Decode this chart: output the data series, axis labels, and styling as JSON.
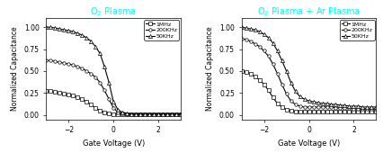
{
  "title1": "O$_2$ Plasma",
  "title2": "O$_2$ Plasma + Ar Plasma",
  "title1_color": "cyan",
  "title2_color": "cyan",
  "xlabel": "Gate Voltage (V)",
  "ylabel": "Normalized Capacitance",
  "xlim": [
    -3,
    3
  ],
  "ylim": [
    -0.05,
    1.1
  ],
  "yticks": [
    0.0,
    0.25,
    0.5,
    0.75,
    1.0
  ],
  "xticks": [
    -2,
    0,
    2
  ],
  "plot1": {
    "x_1mhz": [
      -3.0,
      -2.8,
      -2.6,
      -2.4,
      -2.2,
      -2.0,
      -1.8,
      -1.6,
      -1.4,
      -1.2,
      -1.0,
      -0.8,
      -0.6,
      -0.4,
      -0.2,
      0.0,
      0.2,
      0.4,
      0.6,
      0.8,
      1.0,
      1.2,
      1.4,
      1.6,
      1.8,
      2.0,
      2.2,
      2.4,
      2.6,
      2.8,
      3.0
    ],
    "y_1mhz": [
      0.27,
      0.27,
      0.26,
      0.25,
      0.24,
      0.23,
      0.22,
      0.2,
      0.18,
      0.15,
      0.12,
      0.08,
      0.05,
      0.03,
      0.02,
      0.01,
      0.01,
      0.01,
      0.01,
      0.01,
      0.01,
      0.01,
      0.01,
      0.01,
      0.01,
      0.01,
      0.01,
      0.01,
      0.01,
      0.01,
      0.01
    ],
    "x_200k": [
      -3.0,
      -2.8,
      -2.6,
      -2.4,
      -2.2,
      -2.0,
      -1.8,
      -1.6,
      -1.4,
      -1.2,
      -1.0,
      -0.8,
      -0.6,
      -0.4,
      -0.2,
      0.0,
      0.2,
      0.4,
      0.6,
      0.8,
      1.0,
      1.2,
      1.4,
      1.6,
      1.8,
      2.0,
      2.2,
      2.4,
      2.6,
      2.8,
      3.0
    ],
    "y_200k": [
      0.62,
      0.62,
      0.61,
      0.6,
      0.59,
      0.58,
      0.57,
      0.55,
      0.53,
      0.5,
      0.47,
      0.43,
      0.37,
      0.28,
      0.18,
      0.08,
      0.03,
      0.02,
      0.01,
      0.01,
      0.01,
      0.01,
      0.01,
      0.01,
      0.01,
      0.01,
      0.01,
      0.01,
      0.01,
      0.01,
      0.01
    ],
    "x_50k": [
      -3.0,
      -2.8,
      -2.6,
      -2.4,
      -2.2,
      -2.0,
      -1.8,
      -1.6,
      -1.4,
      -1.2,
      -1.0,
      -0.8,
      -0.6,
      -0.4,
      -0.2,
      0.0,
      0.2,
      0.4,
      0.6,
      0.8,
      1.0,
      1.2,
      1.4,
      1.6,
      1.8,
      2.0,
      2.2,
      2.4,
      2.6,
      2.8,
      3.0
    ],
    "y_50k": [
      1.0,
      1.0,
      0.99,
      0.98,
      0.97,
      0.96,
      0.95,
      0.93,
      0.91,
      0.88,
      0.84,
      0.78,
      0.7,
      0.55,
      0.37,
      0.15,
      0.06,
      0.03,
      0.02,
      0.01,
      0.01,
      0.01,
      0.01,
      0.01,
      0.01,
      0.01,
      0.01,
      0.01,
      0.01,
      0.01,
      0.01
    ]
  },
  "plot2": {
    "x_1mhz": [
      -3.0,
      -2.8,
      -2.6,
      -2.4,
      -2.2,
      -2.0,
      -1.8,
      -1.6,
      -1.4,
      -1.2,
      -1.0,
      -0.8,
      -0.6,
      -0.4,
      -0.2,
      0.0,
      0.2,
      0.4,
      0.6,
      0.8,
      1.0,
      1.2,
      1.4,
      1.6,
      1.8,
      2.0,
      2.2,
      2.4,
      2.6,
      2.8,
      3.0
    ],
    "y_1mhz": [
      0.5,
      0.49,
      0.47,
      0.44,
      0.4,
      0.35,
      0.28,
      0.2,
      0.13,
      0.09,
      0.06,
      0.05,
      0.04,
      0.04,
      0.04,
      0.04,
      0.04,
      0.04,
      0.04,
      0.04,
      0.04,
      0.04,
      0.04,
      0.04,
      0.04,
      0.04,
      0.04,
      0.04,
      0.04,
      0.04,
      0.04
    ],
    "x_200k": [
      -3.0,
      -2.8,
      -2.6,
      -2.4,
      -2.2,
      -2.0,
      -1.8,
      -1.6,
      -1.4,
      -1.2,
      -1.0,
      -0.8,
      -0.6,
      -0.4,
      -0.2,
      0.0,
      0.2,
      0.4,
      0.6,
      0.8,
      1.0,
      1.2,
      1.4,
      1.6,
      1.8,
      2.0,
      2.2,
      2.4,
      2.6,
      2.8,
      3.0
    ],
    "y_200k": [
      0.87,
      0.86,
      0.84,
      0.81,
      0.78,
      0.73,
      0.67,
      0.58,
      0.47,
      0.35,
      0.24,
      0.16,
      0.12,
      0.1,
      0.09,
      0.09,
      0.09,
      0.09,
      0.09,
      0.09,
      0.09,
      0.08,
      0.08,
      0.08,
      0.08,
      0.07,
      0.07,
      0.07,
      0.07,
      0.07,
      0.07
    ],
    "x_50k": [
      -3.0,
      -2.8,
      -2.6,
      -2.4,
      -2.2,
      -2.0,
      -1.8,
      -1.6,
      -1.4,
      -1.2,
      -1.0,
      -0.8,
      -0.6,
      -0.4,
      -0.2,
      0.0,
      0.2,
      0.4,
      0.6,
      0.8,
      1.0,
      1.2,
      1.4,
      1.6,
      1.8,
      2.0,
      2.2,
      2.4,
      2.6,
      2.8,
      3.0
    ],
    "y_50k": [
      1.0,
      0.99,
      0.98,
      0.97,
      0.95,
      0.92,
      0.88,
      0.82,
      0.73,
      0.62,
      0.5,
      0.37,
      0.27,
      0.21,
      0.18,
      0.16,
      0.15,
      0.14,
      0.13,
      0.13,
      0.12,
      0.12,
      0.11,
      0.11,
      0.1,
      0.1,
      0.1,
      0.09,
      0.09,
      0.09,
      0.09
    ]
  }
}
